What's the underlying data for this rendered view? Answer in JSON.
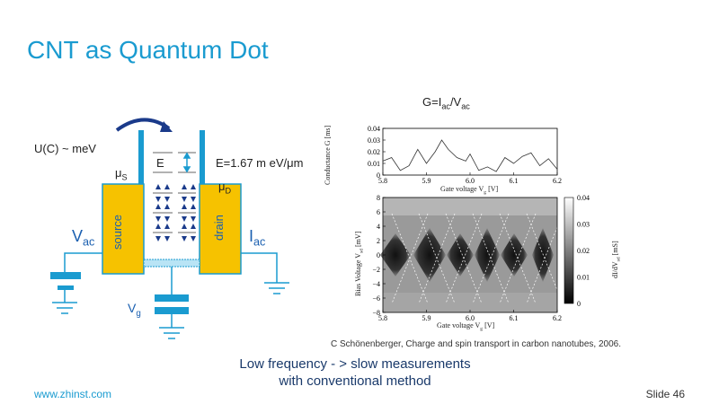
{
  "slide": {
    "title": "CNT as Quantum Dot",
    "footer_left": "www.zhinst.com",
    "footer_right": "Slide 46",
    "bottom_note_line1": "Low frequency - > slow measurements",
    "bottom_note_line2": "with conventional method",
    "citation": "C Schönenberger, Charge and spin transport in carbon nanotubes, 2006."
  },
  "diagram": {
    "energy_label": "U(C) ~ meV",
    "mu_s": "μ",
    "mu_s_sub": "S",
    "mu_d": "μ",
    "mu_d_sub": "D",
    "level_label": "E",
    "level_spacing": "E=1.67 m eV/μm",
    "source_label": "source",
    "drain_label": "drain",
    "vac": "V",
    "vac_sub": "ac",
    "iac": "I",
    "iac_sub": "ac",
    "vg": "V",
    "vg_sub": "g",
    "colors": {
      "lead": "#f6c200",
      "wall": "#1a9bd0",
      "arrow": "#1a3a8a",
      "circuit": "#1a9bd0"
    }
  },
  "formula": {
    "g": "G=I",
    "sub1": "ac",
    "mid": "/V",
    "sub2": "ac"
  },
  "top_plot": {
    "ylabel": "Conductance G [ms]",
    "xlabel": "Gate voltage V",
    "xlabel_sub": "g",
    "xlabel_unit": " [V]",
    "yticks": [
      "0.04",
      "0.03",
      "0.02",
      "0.01",
      "0"
    ],
    "xticks": [
      "5.8",
      "5.9",
      "6.0",
      "6.1",
      "6.2"
    ]
  },
  "bottom_plot": {
    "ylabel": "Bias Voltage V",
    "ylabel_sub": "sd",
    "ylabel_unit": " [mV]",
    "xlabel": "Gate voltage V",
    "xlabel_sub": "g",
    "xlabel_unit": " [V]",
    "yticks": [
      "8",
      "6",
      "4",
      "2",
      "0",
      "−2",
      "−4",
      "−6",
      "−8"
    ],
    "xticks": [
      "5.8",
      "5.9",
      "6.0",
      "6.1",
      "6.2"
    ],
    "colorbar_ticks": [
      "0.04",
      "0.03",
      "0.02",
      "0.01",
      "0"
    ],
    "colorbar_label": "dI/dV",
    "colorbar_label_sub": "sd",
    "colorbar_label_unit": " [mS]"
  },
  "chart_data": [
    {
      "type": "line",
      "ylabel": "Conductance G [ms]",
      "xlabel": "Gate voltage Vg [V]",
      "xlim": [
        5.8,
        6.2
      ],
      "ylim": [
        0,
        0.04
      ],
      "x": [
        5.8,
        5.82,
        5.84,
        5.86,
        5.88,
        5.9,
        5.92,
        5.935,
        5.95,
        5.97,
        5.99,
        6.0,
        6.02,
        6.04,
        6.06,
        6.08,
        6.1,
        6.12,
        6.14,
        6.16,
        6.18,
        6.2
      ],
      "y": [
        0.012,
        0.015,
        0.004,
        0.008,
        0.022,
        0.01,
        0.02,
        0.03,
        0.022,
        0.015,
        0.012,
        0.018,
        0.004,
        0.007,
        0.003,
        0.015,
        0.01,
        0.016,
        0.019,
        0.008,
        0.014,
        0.005
      ]
    },
    {
      "type": "heatmap",
      "ylabel": "Bias Voltage Vsd [mV]",
      "xlabel": "Gate voltage Vg [V]",
      "xlim": [
        5.8,
        6.2
      ],
      "ylim": [
        -8,
        8
      ],
      "colorbar_label": "dI/dVsd [mS]",
      "colorbar_range": [
        0,
        0.04
      ]
    }
  ]
}
